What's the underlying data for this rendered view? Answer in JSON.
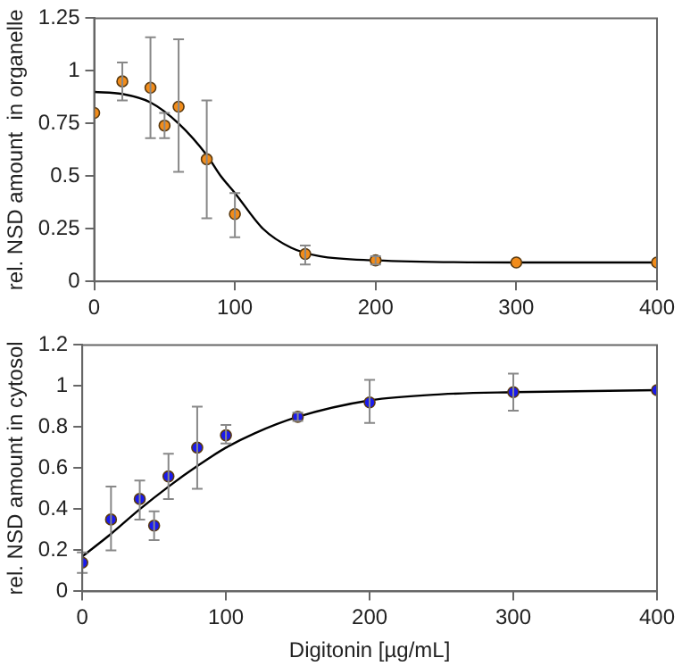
{
  "chart_data": [
    {
      "type": "scatter",
      "ylabel": "rel. NSD amount  in organelle",
      "x": [
        0,
        20,
        40,
        50,
        60,
        80,
        100,
        150,
        200,
        300,
        400
      ],
      "xlim": [
        0,
        400
      ],
      "xticks": [
        0,
        100,
        200,
        300,
        400
      ],
      "ylim": [
        0,
        1.25
      ],
      "yticks": [
        0,
        0.25,
        0.5,
        0.75,
        1,
        1.25
      ],
      "grid": false,
      "legend": false,
      "series": [
        {
          "type": "scatter",
          "marker": "circle",
          "color": "#f28c1a",
          "values": [
            0.8,
            0.95,
            0.92,
            0.74,
            0.83,
            0.58,
            0.32,
            0.13,
            0.1,
            0.09,
            0.09
          ],
          "errors": [
            null,
            [
              0.86,
              1.04
            ],
            [
              0.68,
              1.16
            ],
            [
              0.68,
              0.8
            ],
            [
              0.52,
              1.15
            ],
            [
              0.3,
              0.86
            ],
            [
              0.21,
              0.42
            ],
            [
              0.08,
              0.17
            ],
            [
              0.08,
              0.12
            ],
            null,
            null
          ]
        },
        {
          "type": "line",
          "marker": "none",
          "line_style": "solid",
          "color": "#000000",
          "x": [
            0,
            20,
            40,
            60,
            80,
            90,
            100,
            120,
            140,
            160,
            200,
            300,
            400
          ],
          "values": [
            0.9,
            0.89,
            0.85,
            0.75,
            0.6,
            0.5,
            0.42,
            0.25,
            0.16,
            0.12,
            0.1,
            0.09,
            0.09
          ]
        }
      ]
    },
    {
      "type": "scatter",
      "xlabel": "Digitonin [µg/mL]",
      "ylabel": "rel. NSD amount in cytosol",
      "x": [
        0,
        20,
        40,
        50,
        60,
        80,
        100,
        150,
        200,
        300,
        400
      ],
      "xlim": [
        0,
        400
      ],
      "xticks": [
        0,
        100,
        200,
        300,
        400
      ],
      "ylim": [
        0,
        1.2
      ],
      "yticks": [
        0,
        0.2,
        0.4,
        0.6,
        0.8,
        1,
        1.2
      ],
      "grid": false,
      "legend": false,
      "series": [
        {
          "type": "scatter",
          "marker": "circle",
          "color": "#1a1aee",
          "values": [
            0.14,
            0.35,
            0.45,
            0.32,
            0.56,
            0.7,
            0.76,
            0.85,
            0.92,
            0.97,
            0.98
          ],
          "errors": [
            [
              0.09,
              0.19
            ],
            [
              0.2,
              0.51
            ],
            [
              0.35,
              0.54
            ],
            [
              0.25,
              0.39
            ],
            [
              0.45,
              0.67
            ],
            [
              0.5,
              0.9
            ],
            [
              0.72,
              0.81
            ],
            [
              0.83,
              0.87
            ],
            [
              0.82,
              1.03
            ],
            [
              0.88,
              1.06
            ],
            null
          ]
        },
        {
          "type": "line",
          "marker": "none",
          "line_style": "solid",
          "color": "#000000",
          "x": [
            0,
            20,
            40,
            60,
            80,
            100,
            120,
            150,
            200,
            250,
            300,
            400
          ],
          "values": [
            0.17,
            0.28,
            0.4,
            0.51,
            0.61,
            0.7,
            0.77,
            0.85,
            0.93,
            0.96,
            0.97,
            0.98
          ]
        }
      ]
    }
  ]
}
